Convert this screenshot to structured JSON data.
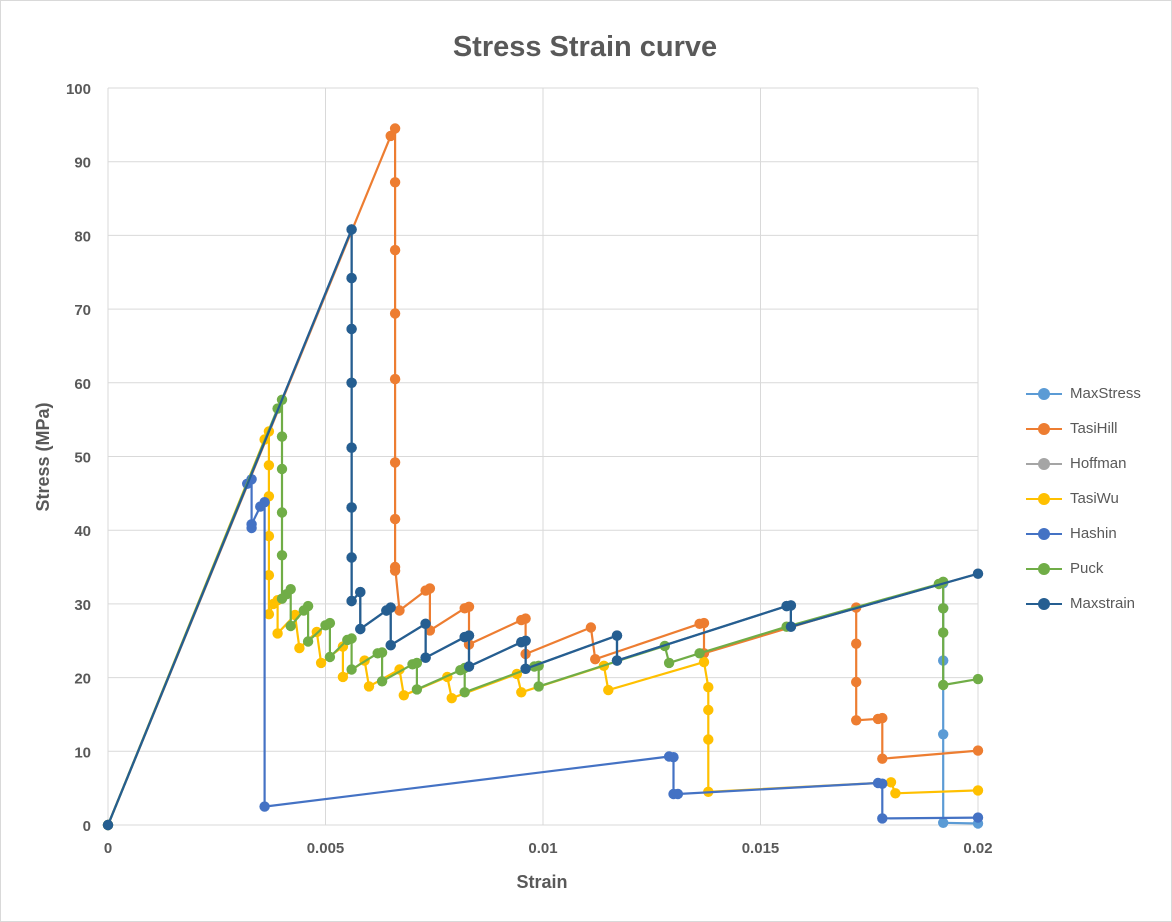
{
  "chart_data": {
    "type": "line",
    "title": "Stress Strain curve",
    "xlabel": "Strain",
    "ylabel": "Stress (MPa)",
    "xlim": [
      0,
      0.02
    ],
    "ylim": [
      0,
      100
    ],
    "x_ticks": [
      "0",
      "0.005",
      "0.01",
      "0.015",
      "0.02"
    ],
    "y_ticks": [
      "0",
      "10",
      "20",
      "30",
      "40",
      "50",
      "60",
      "70",
      "80",
      "90",
      "100"
    ],
    "grid": true,
    "legend_position": "right",
    "series": [
      {
        "name": "MaxStress",
        "color": "#5B9BD5",
        "points": [
          [
            0,
            0
          ],
          [
            0.0056,
            80.8
          ],
          [
            0.0056,
            74.2
          ],
          [
            0.0056,
            67.3
          ],
          [
            0.0056,
            60
          ],
          [
            0.0056,
            51.2
          ],
          [
            0.0056,
            43.1
          ],
          [
            0.0056,
            36.3
          ],
          [
            0.0056,
            30.4
          ],
          [
            0.0058,
            31.6
          ],
          [
            0.0058,
            26.6
          ],
          [
            0.0064,
            29.1
          ],
          [
            0.0065,
            29.5
          ],
          [
            0.0065,
            24.4
          ],
          [
            0.0073,
            27.3
          ],
          [
            0.0073,
            22.7
          ],
          [
            0.0082,
            25.5
          ],
          [
            0.0083,
            25.7
          ],
          [
            0.0083,
            21.5
          ],
          [
            0.0095,
            24.8
          ],
          [
            0.0096,
            25
          ],
          [
            0.0096,
            21.2
          ],
          [
            0.0117,
            25.7
          ],
          [
            0.0117,
            22.3
          ],
          [
            0.0156,
            29.7
          ],
          [
            0.0157,
            29.8
          ],
          [
            0.0157,
            26.9
          ],
          [
            0.0192,
            32.8
          ],
          [
            0.0192,
            29.4
          ],
          [
            0.0192,
            22.3
          ],
          [
            0.0192,
            12.3
          ],
          [
            0.0192,
            0.3
          ],
          [
            0.02,
            0.2
          ]
        ]
      },
      {
        "name": "TasiHill",
        "color": "#ED7D31",
        "points": [
          [
            0,
            0
          ],
          [
            0.0065,
            93.5
          ],
          [
            0.0066,
            94.5
          ],
          [
            0.0066,
            87.2
          ],
          [
            0.0066,
            78
          ],
          [
            0.0066,
            69.4
          ],
          [
            0.0066,
            60.5
          ],
          [
            0.0066,
            49.2
          ],
          [
            0.0066,
            41.5
          ],
          [
            0.0066,
            34.5
          ],
          [
            0.0066,
            35
          ],
          [
            0.0067,
            29.1
          ],
          [
            0.0073,
            31.8
          ],
          [
            0.0074,
            32.1
          ],
          [
            0.0074,
            26.4
          ],
          [
            0.0082,
            29.4
          ],
          [
            0.0083,
            29.6
          ],
          [
            0.0083,
            24.5
          ],
          [
            0.0095,
            27.8
          ],
          [
            0.0096,
            28
          ],
          [
            0.0096,
            23.2
          ],
          [
            0.0111,
            26.8
          ],
          [
            0.0112,
            22.5
          ],
          [
            0.0136,
            27.3
          ],
          [
            0.0137,
            27.4
          ],
          [
            0.0137,
            23.3
          ],
          [
            0.0172,
            29.5
          ],
          [
            0.0172,
            24.6
          ],
          [
            0.0172,
            19.4
          ],
          [
            0.0172,
            14.2
          ],
          [
            0.0177,
            14.4
          ],
          [
            0.0178,
            14.5
          ],
          [
            0.0178,
            9
          ],
          [
            0.02,
            10.1
          ]
        ]
      },
      {
        "name": "Hoffman",
        "color": "#A5A5A5",
        "points": [
          [
            0,
            0
          ],
          [
            0.0056,
            80.8
          ],
          [
            0.0056,
            74.2
          ],
          [
            0.0056,
            67.3
          ],
          [
            0.0056,
            60
          ],
          [
            0.0056,
            51.2
          ],
          [
            0.0056,
            43.1
          ],
          [
            0.0056,
            36.3
          ],
          [
            0.0056,
            30.4
          ],
          [
            0.0058,
            31.6
          ],
          [
            0.0058,
            26.6
          ],
          [
            0.0064,
            29.1
          ],
          [
            0.0065,
            29.5
          ],
          [
            0.0065,
            24.4
          ],
          [
            0.0073,
            27.3
          ],
          [
            0.0073,
            22.7
          ],
          [
            0.0082,
            25.5
          ],
          [
            0.0083,
            25.7
          ],
          [
            0.0083,
            21.5
          ],
          [
            0.0095,
            24.8
          ],
          [
            0.0096,
            25
          ],
          [
            0.0096,
            21.2
          ],
          [
            0.0117,
            25.7
          ],
          [
            0.0117,
            22.3
          ],
          [
            0.0156,
            29.7
          ],
          [
            0.0157,
            29.8
          ],
          [
            0.0157,
            26.9
          ],
          [
            0.02,
            34.1
          ]
        ]
      },
      {
        "name": "TasiWu",
        "color": "#FFC000",
        "points": [
          [
            0,
            0
          ],
          [
            0.0036,
            52.3
          ],
          [
            0.0037,
            53.4
          ],
          [
            0.0037,
            48.8
          ],
          [
            0.0037,
            44.6
          ],
          [
            0.0037,
            39.2
          ],
          [
            0.0037,
            33.9
          ],
          [
            0.0037,
            28.6
          ],
          [
            0.0038,
            30
          ],
          [
            0.0039,
            30.5
          ],
          [
            0.0039,
            26
          ],
          [
            0.0043,
            28.5
          ],
          [
            0.0044,
            24
          ],
          [
            0.0048,
            26.2
          ],
          [
            0.0049,
            22
          ],
          [
            0.0054,
            24.2
          ],
          [
            0.0054,
            20.1
          ],
          [
            0.0059,
            22.3
          ],
          [
            0.006,
            18.8
          ],
          [
            0.0067,
            21.1
          ],
          [
            0.0068,
            17.6
          ],
          [
            0.0078,
            20.1
          ],
          [
            0.0079,
            17.2
          ],
          [
            0.0094,
            20.5
          ],
          [
            0.0095,
            18
          ],
          [
            0.0114,
            21.6
          ],
          [
            0.0115,
            18.3
          ],
          [
            0.0137,
            22.1
          ],
          [
            0.0138,
            18.7
          ],
          [
            0.0138,
            15.6
          ],
          [
            0.0138,
            11.6
          ],
          [
            0.0138,
            4.5
          ],
          [
            0.018,
            5.8
          ],
          [
            0.0181,
            4.3
          ],
          [
            0.02,
            4.7
          ]
        ]
      },
      {
        "name": "Hashin",
        "color": "#4472C4",
        "points": [
          [
            0,
            0
          ],
          [
            0.0032,
            46.3
          ],
          [
            0.0033,
            46.9
          ],
          [
            0.0033,
            40.3
          ],
          [
            0.0033,
            40.8
          ],
          [
            0.0035,
            43.2
          ],
          [
            0.0036,
            43.8
          ],
          [
            0.0036,
            2.5
          ],
          [
            0.0129,
            9.3
          ],
          [
            0.013,
            9.2
          ],
          [
            0.013,
            4.2
          ],
          [
            0.0131,
            4.2
          ],
          [
            0.0177,
            5.7
          ],
          [
            0.0178,
            5.6
          ],
          [
            0.0178,
            0.9
          ],
          [
            0.02,
            1
          ]
        ]
      },
      {
        "name": "Puck",
        "color": "#70AD47",
        "points": [
          [
            0,
            0
          ],
          [
            0.0039,
            56.5
          ],
          [
            0.004,
            57.7
          ],
          [
            0.004,
            52.7
          ],
          [
            0.004,
            48.3
          ],
          [
            0.004,
            42.4
          ],
          [
            0.004,
            36.6
          ],
          [
            0.004,
            30.7
          ],
          [
            0.0041,
            31.3
          ],
          [
            0.0042,
            32
          ],
          [
            0.0042,
            27
          ],
          [
            0.0045,
            29.1
          ],
          [
            0.0046,
            29.7
          ],
          [
            0.0046,
            24.9
          ],
          [
            0.005,
            27.1
          ],
          [
            0.0051,
            27.4
          ],
          [
            0.0051,
            22.8
          ],
          [
            0.0055,
            25.1
          ],
          [
            0.0056,
            25.3
          ],
          [
            0.0056,
            21.1
          ],
          [
            0.0062,
            23.3
          ],
          [
            0.0063,
            23.4
          ],
          [
            0.0063,
            19.5
          ],
          [
            0.007,
            21.8
          ],
          [
            0.0071,
            22
          ],
          [
            0.0071,
            18.4
          ],
          [
            0.0081,
            21
          ],
          [
            0.0082,
            21.3
          ],
          [
            0.0082,
            18
          ],
          [
            0.0098,
            21.5
          ],
          [
            0.0099,
            21.6
          ],
          [
            0.0099,
            18.8
          ],
          [
            0.0128,
            24.3
          ],
          [
            0.0129,
            22
          ],
          [
            0.0136,
            23.3
          ],
          [
            0.0156,
            26.9
          ],
          [
            0.0191,
            32.7
          ],
          [
            0.0192,
            33
          ],
          [
            0.0192,
            29.4
          ],
          [
            0.0192,
            26.1
          ],
          [
            0.0192,
            19
          ],
          [
            0.02,
            19.8
          ]
        ]
      },
      {
        "name": "Maxstrain",
        "color": "#255E91",
        "points": [
          [
            0,
            0
          ],
          [
            0.0056,
            80.8
          ],
          [
            0.0056,
            74.2
          ],
          [
            0.0056,
            67.3
          ],
          [
            0.0056,
            60
          ],
          [
            0.0056,
            51.2
          ],
          [
            0.0056,
            43.1
          ],
          [
            0.0056,
            36.3
          ],
          [
            0.0056,
            30.4
          ],
          [
            0.0058,
            31.6
          ],
          [
            0.0058,
            26.6
          ],
          [
            0.0064,
            29.1
          ],
          [
            0.0065,
            29.5
          ],
          [
            0.0065,
            24.4
          ],
          [
            0.0073,
            27.3
          ],
          [
            0.0073,
            22.7
          ],
          [
            0.0082,
            25.5
          ],
          [
            0.0083,
            25.7
          ],
          [
            0.0083,
            21.5
          ],
          [
            0.0095,
            24.8
          ],
          [
            0.0096,
            25
          ],
          [
            0.0096,
            21.2
          ],
          [
            0.0117,
            25.7
          ],
          [
            0.0117,
            22.3
          ],
          [
            0.0156,
            29.7
          ],
          [
            0.0157,
            29.8
          ],
          [
            0.0157,
            26.9
          ],
          [
            0.02,
            34.1
          ]
        ]
      }
    ]
  }
}
